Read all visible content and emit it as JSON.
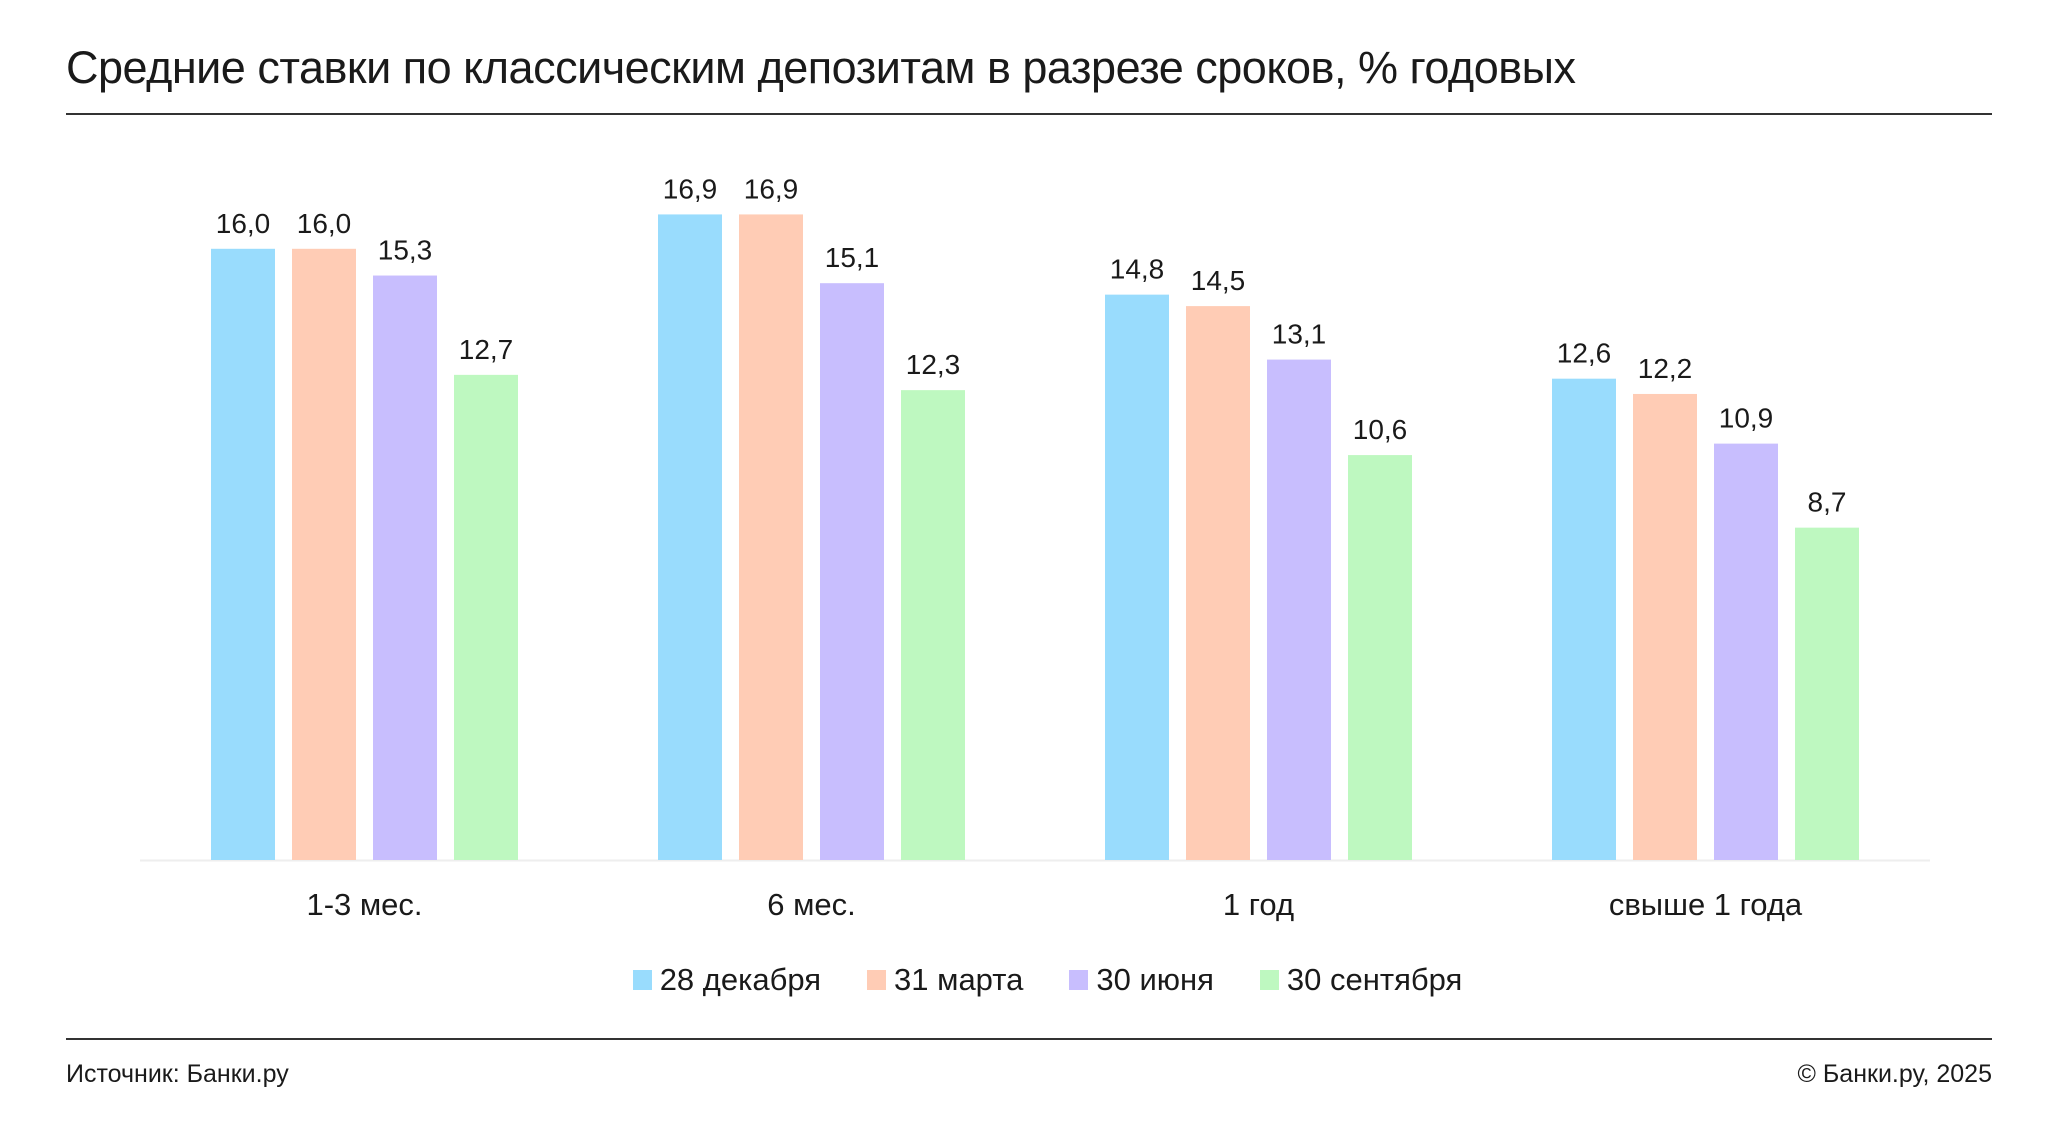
{
  "title": "Средние ставки по классическим депозитам в разрезе сроков, % годовых",
  "footer": {
    "source": "Источник: Банки.ру",
    "copyright": "© Банки.ру, 2025"
  },
  "chart_data": {
    "type": "bar",
    "title": "Средние ставки по классическим депозитам в разрезе сроков, % годовых",
    "categories": [
      "1-3 мес.",
      "6 мес.",
      "1 год",
      "свыше 1 года"
    ],
    "series": [
      {
        "name": "28 декабря",
        "color": "#99dcfd",
        "values": [
          16.0,
          16.9,
          14.8,
          12.6
        ],
        "labels": [
          "16,0",
          "16,9",
          "14,8",
          "12,6"
        ]
      },
      {
        "name": "31 марта",
        "color": "#ffccb5",
        "values": [
          16.0,
          16.9,
          14.5,
          12.2
        ],
        "labels": [
          "16,0",
          "16,9",
          "14,5",
          "12,2"
        ]
      },
      {
        "name": "30 июня",
        "color": "#c8befe",
        "values": [
          15.3,
          15.1,
          13.1,
          10.9
        ],
        "labels": [
          "15,3",
          "15,1",
          "13,1",
          "10,9"
        ]
      },
      {
        "name": "30 сентября",
        "color": "#bef8c0",
        "values": [
          12.7,
          12.3,
          10.6,
          8.7
        ],
        "labels": [
          "12,7",
          "12,3",
          "10,6",
          "8,7"
        ]
      }
    ],
    "xlabel": "",
    "ylabel": "",
    "ylim": [
      0,
      17
    ],
    "grid": false,
    "legend": "bottom-center"
  }
}
